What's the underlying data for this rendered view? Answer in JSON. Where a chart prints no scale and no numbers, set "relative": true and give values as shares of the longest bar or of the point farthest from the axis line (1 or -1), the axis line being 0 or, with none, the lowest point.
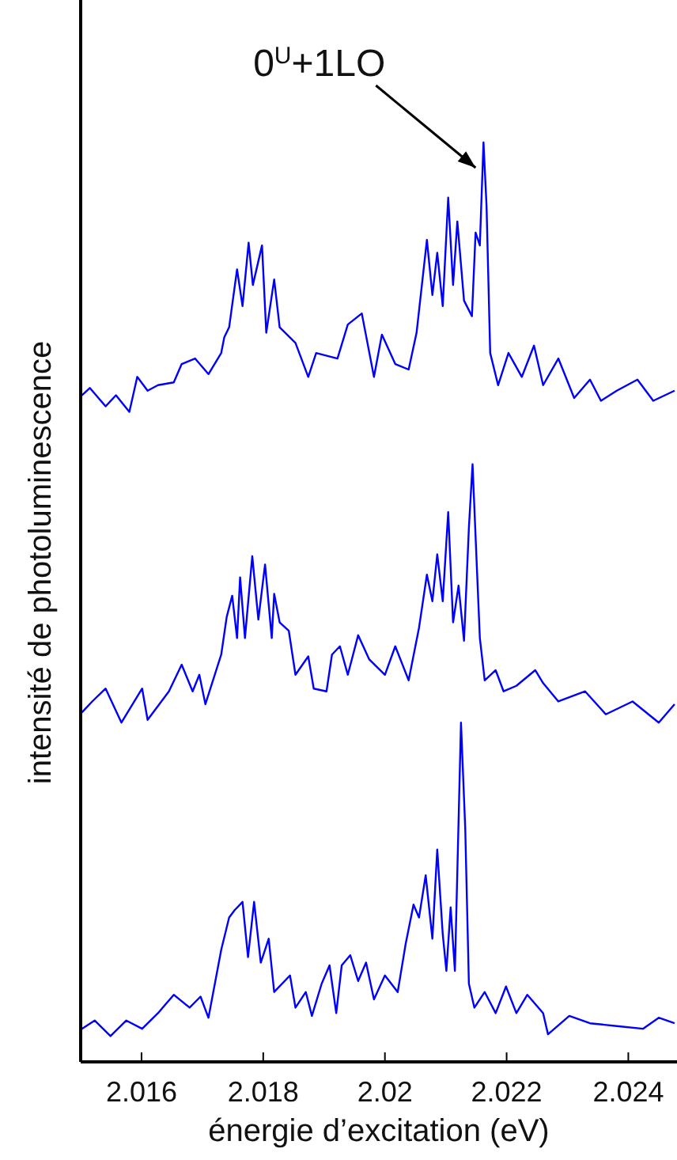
{
  "chart_data": {
    "type": "line",
    "relative": true,
    "xlabel": "énergie d’excitation (eV)",
    "ylabel": "intensité de photoluminescence",
    "xlim": [
      2.015,
      2.0248
    ],
    "xticks": [
      2.016,
      2.018,
      2.02,
      2.022,
      2.024
    ],
    "tick_labels": "x",
    "grid": false,
    "marker": "none",
    "line_style": "solid",
    "annotations": [
      {
        "text": "0$^{U}$+1LO",
        "x": 2.02162,
        "y": 1
      }
    ],
    "series": [
      {
        "color": "#0000ff",
        "x": [
          2.01502,
          2.01515,
          2.01541,
          2.01558,
          2.0158,
          2.01593,
          2.0161,
          2.01627,
          2.01653,
          2.01666,
          2.01688,
          2.0171,
          2.01731,
          2.01736,
          2.01744,
          2.01757,
          2.01766,
          2.01776,
          2.01783,
          2.01798,
          2.01805,
          2.01818,
          2.01827,
          2.01853,
          2.01874,
          2.01887,
          2.01922,
          2.01939,
          2.01962,
          2.01982,
          2.01995,
          2.02017,
          2.02039,
          2.02052,
          2.02069,
          2.02078,
          2.02086,
          2.02095,
          2.02104,
          2.02112,
          2.02119,
          2.0213,
          2.02143,
          2.02149,
          2.02156,
          2.02162,
          2.02167,
          2.02173,
          2.02186,
          2.02203,
          2.02225,
          2.02245,
          2.0226,
          2.02285,
          2.02311,
          2.02337,
          2.02355,
          2.02381,
          2.02415,
          2.02441,
          2.02476
        ],
        "values": [
          0.725,
          0.733,
          0.713,
          0.725,
          0.707,
          0.745,
          0.73,
          0.736,
          0.739,
          0.759,
          0.765,
          0.748,
          0.771,
          0.788,
          0.799,
          0.862,
          0.822,
          0.891,
          0.845,
          0.888,
          0.793,
          0.851,
          0.799,
          0.782,
          0.745,
          0.771,
          0.765,
          0.802,
          0.814,
          0.745,
          0.791,
          0.759,
          0.753,
          0.793,
          0.894,
          0.834,
          0.88,
          0.822,
          0.94,
          0.845,
          0.914,
          0.828,
          0.811,
          0.902,
          0.888,
          1,
          0.931,
          0.771,
          0.736,
          0.771,
          0.745,
          0.779,
          0.736,
          0.765,
          0.722,
          0.742,
          0.719,
          0.73,
          0.742,
          0.719,
          0.73
        ]
      },
      {
        "color": "#0000ff",
        "x": [
          2.01502,
          2.01519,
          2.01541,
          2.01567,
          2.01601,
          2.0161,
          2.01645,
          2.01666,
          2.01684,
          2.01695,
          2.01705,
          2.01731,
          2.0174,
          2.01749,
          2.01757,
          2.01762,
          2.0177,
          2.01782,
          2.01792,
          2.01803,
          2.01814,
          2.01818,
          2.01827,
          2.01842,
          2.01853,
          2.01874,
          2.01883,
          2.01904,
          2.01913,
          2.01926,
          2.01939,
          2.01956,
          2.01974,
          2.02,
          2.02017,
          2.02039,
          2.02056,
          2.02069,
          2.02078,
          2.02086,
          2.02095,
          2.02104,
          2.02112,
          2.02121,
          2.0213,
          2.02138,
          2.02144,
          2.02156,
          2.02164,
          2.02182,
          2.02195,
          2.02216,
          2.02247,
          2.0226,
          2.02285,
          2.02329,
          2.02363,
          2.02407,
          2.0245,
          2.02476
        ],
        "values": [
          0.38,
          0.392,
          0.406,
          0.369,
          0.406,
          0.372,
          0.403,
          0.432,
          0.403,
          0.421,
          0.389,
          0.443,
          0.484,
          0.507,
          0.461,
          0.527,
          0.461,
          0.55,
          0.481,
          0.541,
          0.461,
          0.509,
          0.478,
          0.469,
          0.421,
          0.441,
          0.406,
          0.403,
          0.443,
          0.452,
          0.421,
          0.464,
          0.438,
          0.421,
          0.452,
          0.415,
          0.472,
          0.53,
          0.501,
          0.552,
          0.501,
          0.598,
          0.478,
          0.518,
          0.458,
          0.581,
          0.65,
          0.461,
          0.415,
          0.426,
          0.403,
          0.409,
          0.426,
          0.412,
          0.392,
          0.403,
          0.378,
          0.392,
          0.369,
          0.389
        ]
      },
      {
        "color": "#0000ff",
        "x": [
          2.01502,
          2.01523,
          2.01549,
          2.01575,
          2.01601,
          2.01627,
          2.01653,
          2.01679,
          2.01697,
          2.0171,
          2.01731,
          2.01744,
          2.01753,
          2.01766,
          2.01775,
          2.01785,
          2.01796,
          2.01809,
          2.01818,
          2.01844,
          2.01853,
          2.0187,
          2.0188,
          2.01896,
          2.01909,
          2.0192,
          2.01929,
          2.01943,
          2.01956,
          2.01969,
          2.01982,
          2.02,
          2.02021,
          2.02034,
          2.02047,
          2.02056,
          2.02067,
          2.02078,
          2.02086,
          2.02095,
          2.02101,
          2.02108,
          2.02115,
          2.02125,
          2.02132,
          2.02138,
          2.02147,
          2.02164,
          2.02182,
          2.02199,
          2.02216,
          2.02234,
          2.0226,
          2.02268,
          2.02303,
          2.02337,
          2.02381,
          2.02424,
          2.0245,
          2.02476
        ],
        "values": [
          0.036,
          0.045,
          0.028,
          0.045,
          0.036,
          0.053,
          0.073,
          0.059,
          0.071,
          0.048,
          0.122,
          0.157,
          0.165,
          0.174,
          0.114,
          0.174,
          0.108,
          0.134,
          0.076,
          0.094,
          0.059,
          0.076,
          0.05,
          0.085,
          0.105,
          0.053,
          0.105,
          0.116,
          0.088,
          0.108,
          0.068,
          0.094,
          0.076,
          0.128,
          0.171,
          0.157,
          0.203,
          0.134,
          0.231,
          0.139,
          0.099,
          0.168,
          0.099,
          0.369,
          0.254,
          0.085,
          0.059,
          0.076,
          0.053,
          0.082,
          0.053,
          0.073,
          0.053,
          0.03,
          0.05,
          0.042,
          0.039,
          0.036,
          0.048,
          0.042
        ]
      }
    ]
  }
}
